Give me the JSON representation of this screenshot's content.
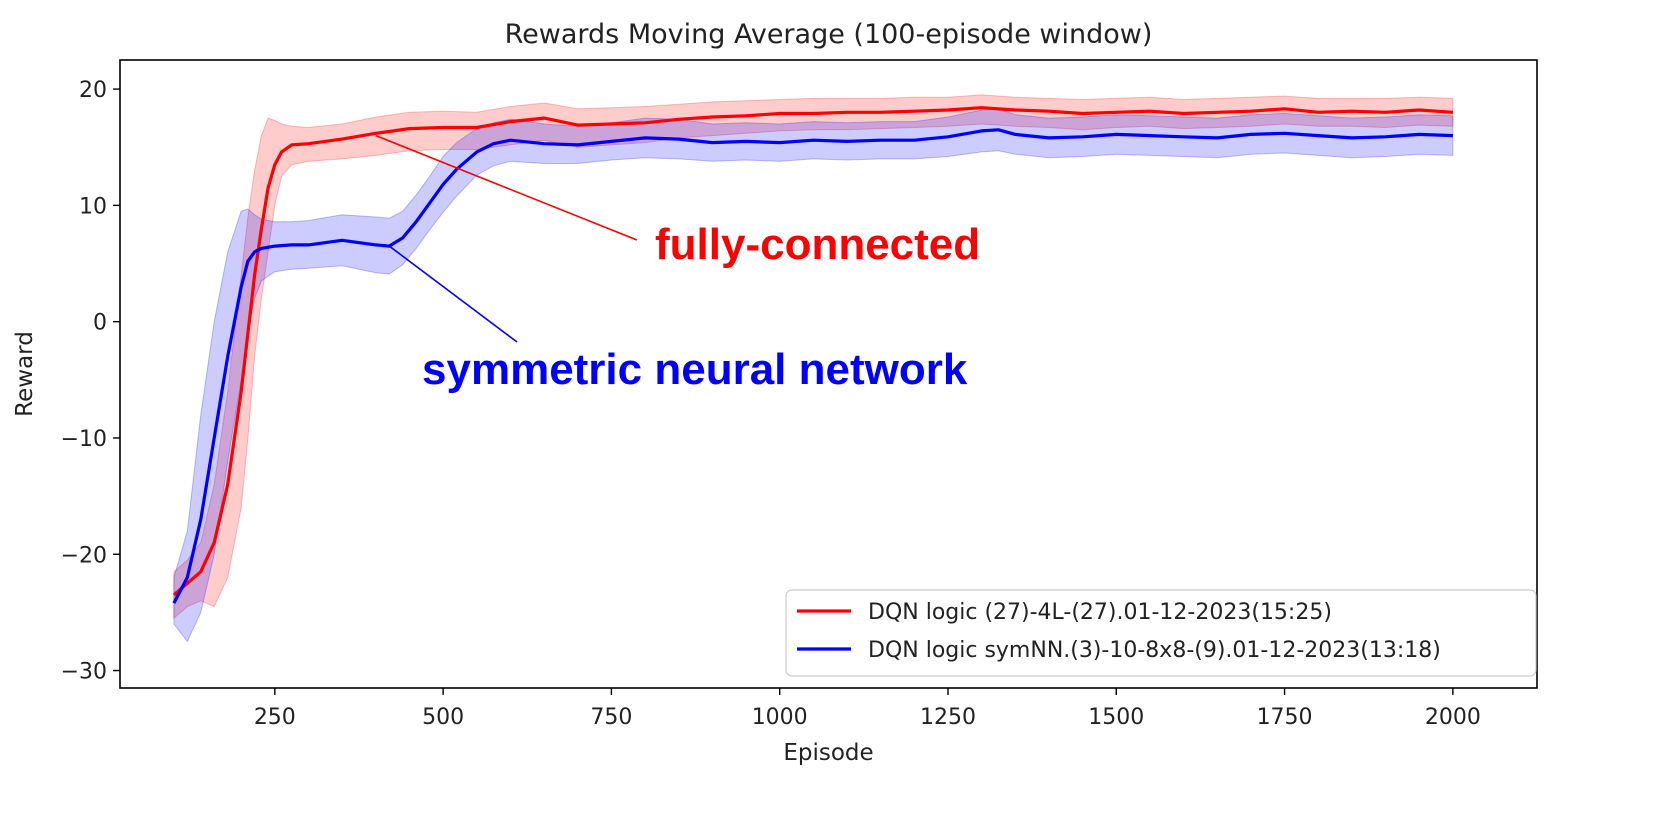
{
  "chart_data": {
    "type": "line",
    "title": "Rewards Moving Average (100-episode window)",
    "xlabel": "Episode",
    "ylabel": "Reward",
    "xlim": [
      20,
      2125
    ],
    "ylim": [
      -31.5,
      22.5
    ],
    "xticks": [
      250,
      500,
      750,
      1000,
      1250,
      1500,
      1750,
      2000
    ],
    "yticks": [
      -30,
      -20,
      -10,
      0,
      10,
      20
    ],
    "grid": false,
    "legend_position": "bottom-right",
    "series": [
      {
        "name": "DQN logic (27)-4L-(27).01-12-2023(15:25)",
        "color": "#ff0000",
        "band_color": "#ff0000",
        "x": [
          100,
          120,
          140,
          160,
          180,
          200,
          210,
          220,
          230,
          240,
          250,
          260,
          275,
          300,
          350,
          400,
          450,
          500,
          550,
          600,
          650,
          700,
          750,
          800,
          850,
          900,
          950,
          1000,
          1050,
          1100,
          1150,
          1200,
          1250,
          1300,
          1350,
          1400,
          1450,
          1500,
          1550,
          1600,
          1650,
          1700,
          1750,
          1800,
          1850,
          1900,
          1950,
          2000
        ],
        "mean": [
          -23.5,
          -22.5,
          -21.5,
          -19,
          -14,
          -6,
          -1,
          4,
          8,
          11.5,
          13.5,
          14.6,
          15.2,
          15.3,
          15.7,
          16.2,
          16.6,
          16.7,
          16.7,
          17.2,
          17.5,
          16.9,
          17.0,
          17.1,
          17.4,
          17.6,
          17.7,
          17.9,
          17.9,
          18.0,
          18.0,
          18.1,
          18.2,
          18.4,
          18.2,
          18.1,
          17.9,
          18.0,
          18.1,
          17.9,
          18.0,
          18.1,
          18.3,
          18.0,
          18.1,
          18.0,
          18.2,
          18.0
        ],
        "lower": [
          -25.5,
          -24.5,
          -24,
          -24.5,
          -22,
          -16,
          -10,
          -3,
          2,
          6,
          10,
          12.5,
          13.5,
          13.8,
          14.0,
          14.3,
          14.7,
          14.8,
          14.8,
          15.2,
          15.6,
          15.0,
          15.2,
          15.4,
          15.8,
          16.0,
          16.2,
          16.4,
          16.5,
          16.5,
          16.6,
          16.7,
          16.8,
          17.0,
          16.8,
          16.7,
          16.5,
          16.7,
          16.8,
          16.6,
          16.7,
          16.8,
          17.0,
          16.8,
          16.8,
          16.7,
          16.9,
          16.8
        ],
        "upper": [
          -21.5,
          -20.5,
          -19,
          -14,
          -6,
          4,
          9,
          13,
          16,
          17.5,
          17.3,
          17,
          16.8,
          16.7,
          17.0,
          17.6,
          18.0,
          18.1,
          18.0,
          18.5,
          18.8,
          18.3,
          18.4,
          18.5,
          18.7,
          18.9,
          19.0,
          19.1,
          19.2,
          19.2,
          19.2,
          19.3,
          19.3,
          19.5,
          19.3,
          19.2,
          19.1,
          19.2,
          19.3,
          19.1,
          19.2,
          19.3,
          19.4,
          19.2,
          19.2,
          19.2,
          19.3,
          19.2
        ]
      },
      {
        "name": "DQN logic symNN.(3)-10-8x8-(9).01-12-2023(13:18)",
        "color": "#0000ff",
        "band_color": "#0000ff",
        "x": [
          100,
          120,
          140,
          160,
          180,
          200,
          210,
          220,
          230,
          250,
          275,
          300,
          350,
          400,
          420,
          440,
          460,
          480,
          500,
          520,
          550,
          575,
          600,
          650,
          700,
          750,
          800,
          850,
          900,
          950,
          1000,
          1050,
          1100,
          1150,
          1200,
          1250,
          1300,
          1325,
          1350,
          1400,
          1450,
          1500,
          1550,
          1600,
          1650,
          1700,
          1750,
          1800,
          1850,
          1900,
          1950,
          2000
        ],
        "mean": [
          -24.2,
          -22,
          -17,
          -10,
          -3,
          3,
          5.2,
          6.0,
          6.3,
          6.5,
          6.6,
          6.6,
          7.0,
          6.6,
          6.5,
          7.2,
          8.6,
          10.2,
          11.8,
          13.1,
          14.6,
          15.3,
          15.6,
          15.3,
          15.2,
          15.5,
          15.8,
          15.7,
          15.4,
          15.5,
          15.4,
          15.6,
          15.5,
          15.6,
          15.6,
          15.9,
          16.4,
          16.5,
          16.1,
          15.8,
          15.9,
          16.1,
          16.0,
          15.9,
          15.8,
          16.1,
          16.2,
          16.0,
          15.8,
          15.9,
          16.1,
          16.0
        ],
        "lower": [
          -26,
          -27.5,
          -25,
          -20,
          -12,
          -5,
          -1,
          2,
          3.5,
          4.3,
          4.5,
          4.6,
          4.8,
          4.2,
          4.1,
          4.9,
          6.3,
          7.9,
          9.4,
          10.8,
          12.6,
          13.4,
          13.8,
          13.6,
          13.6,
          13.9,
          14.1,
          14.0,
          13.8,
          13.9,
          13.8,
          14.0,
          13.9,
          14.0,
          14.0,
          14.2,
          14.6,
          14.7,
          14.4,
          14.1,
          14.2,
          14.4,
          14.3,
          14.2,
          14.1,
          14.4,
          14.5,
          14.3,
          14.1,
          14.2,
          14.4,
          14.3
        ],
        "upper": [
          -22,
          -18,
          -8,
          0,
          6,
          9.5,
          9.7,
          9.2,
          8.8,
          8.6,
          8.6,
          8.7,
          9.2,
          9.0,
          8.9,
          9.5,
          10.9,
          12.5,
          14.2,
          15.4,
          16.6,
          17.1,
          17.4,
          17.0,
          16.8,
          17.1,
          17.5,
          17.4,
          17.0,
          17.1,
          17.0,
          17.2,
          17.1,
          17.2,
          17.2,
          17.6,
          18.2,
          18.3,
          17.8,
          17.5,
          17.6,
          17.8,
          17.7,
          17.6,
          17.5,
          17.8,
          17.9,
          17.7,
          17.5,
          17.6,
          17.8,
          17.7
        ]
      }
    ],
    "annotations": [
      {
        "text": "fully-connected",
        "color": "#ff0000",
        "points_to": [
          400,
          16
        ]
      },
      {
        "text": "symmetric neural network",
        "color": "#0000ff",
        "points_to": [
          420,
          6.5
        ]
      }
    ]
  }
}
